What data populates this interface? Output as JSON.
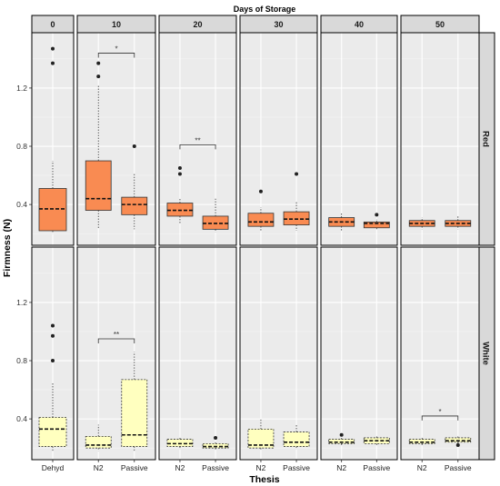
{
  "chart_data": {
    "type": "boxplot",
    "title": "Days of Storage",
    "xlabel": "Thesis",
    "ylabel": "Firmness (N)",
    "yticks": [
      0.4,
      0.8,
      1.2
    ],
    "ylim": [
      0.12,
      1.58
    ],
    "column_facets": [
      "0",
      "10",
      "20",
      "30",
      "40",
      "50"
    ],
    "row_facets": [
      "Red",
      "White"
    ],
    "colors": {
      "Red": "#f98b52",
      "White": "#ffffbf",
      "panel_bg": "#ebebeb",
      "strip_bg": "#d9d9d9"
    },
    "boxes": [
      {
        "row": "Red",
        "facet": "0",
        "group": "Dehyd",
        "q1": 0.22,
        "median": 0.37,
        "q3": 0.51,
        "whisker_low": 0.2,
        "whisker_high": 0.7,
        "outliers": [
          1.37,
          1.47
        ]
      },
      {
        "row": "Red",
        "facet": "10",
        "group": "N2",
        "q1": 0.36,
        "median": 0.44,
        "q3": 0.7,
        "whisker_low": 0.23,
        "whisker_high": 1.22,
        "outliers": [
          1.28,
          1.37
        ]
      },
      {
        "row": "Red",
        "facet": "10",
        "group": "Passive",
        "q1": 0.33,
        "median": 0.4,
        "q3": 0.45,
        "whisker_low": 0.23,
        "whisker_high": 0.61,
        "outliers": [
          0.8
        ]
      },
      {
        "row": "Red",
        "facet": "20",
        "group": "N2",
        "q1": 0.32,
        "median": 0.36,
        "q3": 0.41,
        "whisker_low": 0.27,
        "whisker_high": 0.44,
        "outliers": [
          0.61,
          0.65
        ]
      },
      {
        "row": "Red",
        "facet": "20",
        "group": "Passive",
        "q1": 0.23,
        "median": 0.27,
        "q3": 0.32,
        "whisker_low": 0.21,
        "whisker_high": 0.44,
        "outliers": []
      },
      {
        "row": "Red",
        "facet": "30",
        "group": "N2",
        "q1": 0.25,
        "median": 0.28,
        "q3": 0.34,
        "whisker_low": 0.22,
        "whisker_high": 0.38,
        "outliers": [
          0.49
        ]
      },
      {
        "row": "Red",
        "facet": "30",
        "group": "Passive",
        "q1": 0.26,
        "median": 0.3,
        "q3": 0.35,
        "whisker_low": 0.22,
        "whisker_high": 0.42,
        "outliers": [
          0.61
        ]
      },
      {
        "row": "Red",
        "facet": "40",
        "group": "N2",
        "q1": 0.25,
        "median": 0.28,
        "q3": 0.31,
        "whisker_low": 0.22,
        "whisker_high": 0.34,
        "outliers": []
      },
      {
        "row": "Red",
        "facet": "40",
        "group": "Passive",
        "q1": 0.24,
        "median": 0.27,
        "q3": 0.28,
        "whisker_low": 0.23,
        "whisker_high": 0.3,
        "outliers": [
          0.33
        ]
      },
      {
        "row": "Red",
        "facet": "50",
        "group": "N2",
        "q1": 0.25,
        "median": 0.27,
        "q3": 0.29,
        "whisker_low": 0.23,
        "whisker_high": 0.31,
        "outliers": []
      },
      {
        "row": "Red",
        "facet": "50",
        "group": "Passive",
        "q1": 0.25,
        "median": 0.27,
        "q3": 0.29,
        "whisker_low": 0.23,
        "whisker_high": 0.32,
        "outliers": []
      },
      {
        "row": "White",
        "facet": "0",
        "group": "Dehyd",
        "q1": 0.21,
        "median": 0.33,
        "q3": 0.41,
        "whisker_low": 0.18,
        "whisker_high": 0.65,
        "outliers": [
          0.8,
          0.97,
          1.04
        ]
      },
      {
        "row": "White",
        "facet": "10",
        "group": "N2",
        "q1": 0.2,
        "median": 0.22,
        "q3": 0.28,
        "whisker_low": 0.18,
        "whisker_high": 0.36,
        "outliers": []
      },
      {
        "row": "White",
        "facet": "10",
        "group": "Passive",
        "q1": 0.21,
        "median": 0.29,
        "q3": 0.67,
        "whisker_low": 0.18,
        "whisker_high": 0.86,
        "outliers": []
      },
      {
        "row": "White",
        "facet": "20",
        "group": "N2",
        "q1": 0.21,
        "median": 0.23,
        "q3": 0.26,
        "whisker_low": 0.19,
        "whisker_high": 0.27,
        "outliers": []
      },
      {
        "row": "White",
        "facet": "20",
        "group": "Passive",
        "q1": 0.2,
        "median": 0.21,
        "q3": 0.23,
        "whisker_low": 0.19,
        "whisker_high": 0.24,
        "outliers": [
          0.27
        ]
      },
      {
        "row": "White",
        "facet": "30",
        "group": "N2",
        "q1": 0.2,
        "median": 0.22,
        "q3": 0.33,
        "whisker_low": 0.19,
        "whisker_high": 0.4,
        "outliers": []
      },
      {
        "row": "White",
        "facet": "30",
        "group": "Passive",
        "q1": 0.21,
        "median": 0.24,
        "q3": 0.31,
        "whisker_low": 0.19,
        "whisker_high": 0.36,
        "outliers": []
      },
      {
        "row": "White",
        "facet": "40",
        "group": "N2",
        "q1": 0.23,
        "median": 0.24,
        "q3": 0.26,
        "whisker_low": 0.22,
        "whisker_high": 0.27,
        "outliers": [
          0.29
        ]
      },
      {
        "row": "White",
        "facet": "40",
        "group": "Passive",
        "q1": 0.23,
        "median": 0.25,
        "q3": 0.27,
        "whisker_low": 0.22,
        "whisker_high": 0.28,
        "outliers": []
      },
      {
        "row": "White",
        "facet": "50",
        "group": "N2",
        "q1": 0.23,
        "median": 0.24,
        "q3": 0.26,
        "whisker_low": 0.22,
        "whisker_high": 0.27,
        "outliers": []
      },
      {
        "row": "White",
        "facet": "50",
        "group": "Passive",
        "q1": 0.24,
        "median": 0.25,
        "q3": 0.27,
        "whisker_low": 0.22,
        "whisker_high": 0.28,
        "outliers": [
          0.22
        ]
      }
    ],
    "significance": [
      {
        "row": "Red",
        "facet": "10",
        "label": "*",
        "y": 1.44
      },
      {
        "row": "Red",
        "facet": "20",
        "label": "**",
        "y": 0.81
      },
      {
        "row": "White",
        "facet": "10",
        "label": "**",
        "y": 0.95
      },
      {
        "row": "White",
        "facet": "50",
        "label": "*",
        "y": 0.42
      }
    ]
  }
}
